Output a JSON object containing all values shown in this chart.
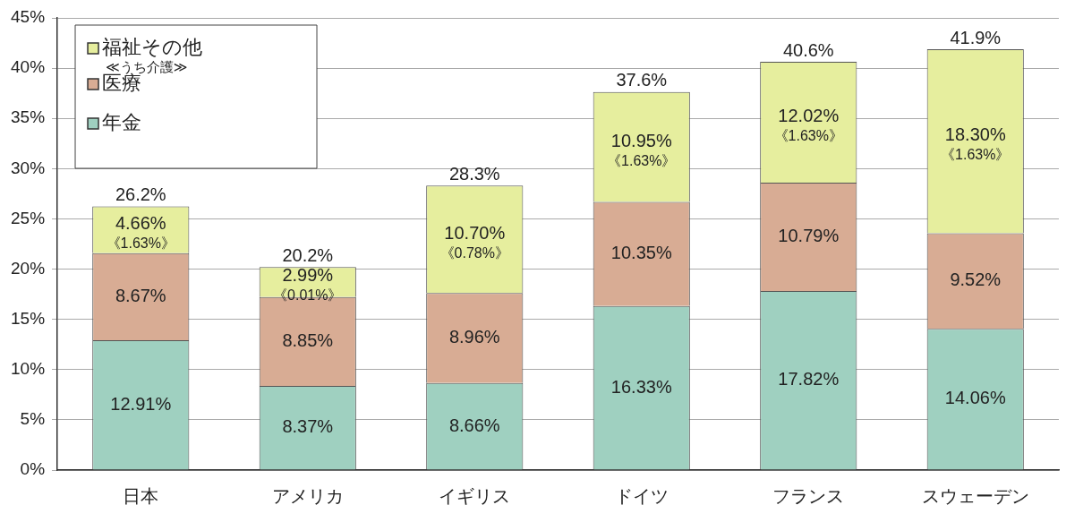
{
  "chart_data": {
    "type": "bar",
    "stacked": true,
    "categories": [
      "日本",
      "アメリカ",
      "イギリス",
      "ドイツ",
      "フランス",
      "スウェーデン"
    ],
    "series": [
      {
        "name": "年金",
        "color": "#9fd0c0",
        "values": [
          12.91,
          8.37,
          8.66,
          16.33,
          17.82,
          14.06
        ],
        "value_labels": [
          "12.91%",
          "8.37%",
          "8.66%",
          "16.33%",
          "17.82%",
          "14.06%"
        ]
      },
      {
        "name": "医療",
        "color": "#d8ac94",
        "values": [
          8.67,
          8.85,
          8.96,
          10.35,
          10.79,
          9.52
        ],
        "value_labels": [
          "8.67%",
          "8.85%",
          "8.96%",
          "10.35%",
          "10.79%",
          "9.52%"
        ]
      },
      {
        "name": "福祉その他",
        "color": "#e6ee9e",
        "values": [
          4.66,
          2.99,
          10.7,
          10.95,
          12.02,
          18.3
        ],
        "value_labels": [
          "4.66%",
          "2.99%",
          "10.70%",
          "10.95%",
          "12.02%",
          "18.30%"
        ]
      }
    ],
    "totals": [
      "26.2%",
      "20.2%",
      "28.3%",
      "37.6%",
      "40.6%",
      "41.9%"
    ],
    "ylim": [
      0,
      45
    ],
    "yticks": [
      {
        "value": 0,
        "label": "0%"
      },
      {
        "value": 5,
        "label": "5%"
      },
      {
        "value": 10,
        "label": "10%"
      },
      {
        "value": 15,
        "label": "15%"
      },
      {
        "value": 20,
        "label": "20%"
      },
      {
        "value": 25,
        "label": "25%"
      },
      {
        "value": 30,
        "label": "30%"
      },
      {
        "value": 35,
        "label": "35%"
      },
      {
        "value": 40,
        "label": "40%"
      },
      {
        "value": 45,
        "label": "45%"
      }
    ],
    "grid": "y",
    "legend": "top left",
    "annotations": [
      "≪うち介護≫",
      "《1.63%》",
      "《0.01%》",
      "《0.78%》",
      "《1.63%》",
      "《1.63%》",
      "《1.63%》"
    ]
  }
}
